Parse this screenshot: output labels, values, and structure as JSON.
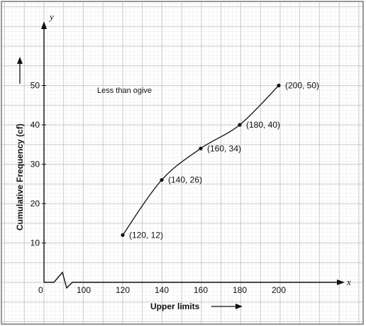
{
  "chart_data": {
    "type": "line",
    "title": "",
    "annotation": "Less than ogive",
    "xlabel": "Upper limits",
    "ylabel": "Cumulative Frequency (cf)",
    "x_axis_letter": "x",
    "y_axis_letter": "y",
    "origin_label": "0",
    "x_ticks": [
      100,
      120,
      140,
      160,
      180,
      200
    ],
    "y_ticks": [
      10,
      20,
      30,
      40,
      50
    ],
    "x_axis_break": true,
    "grid": true,
    "series": [
      {
        "x": [
          120,
          140,
          160,
          180,
          200
        ],
        "y": [
          12,
          26,
          34,
          40,
          50
        ],
        "point_labels": [
          "(120, 12)",
          "(140, 26)",
          "(160, 34)",
          "(180, 40)",
          "(200, 50)"
        ]
      }
    ],
    "colors": {
      "grid": "#c9c9c9",
      "ink": "#111111",
      "background": "#ffffff"
    }
  }
}
